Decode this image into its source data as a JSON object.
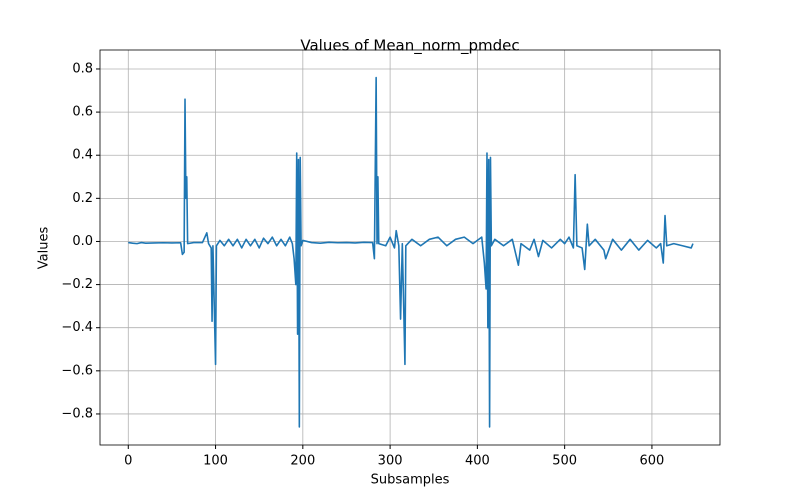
{
  "chart_data": {
    "type": "line",
    "title": "Values of Mean_norm_pmdec",
    "xlabel": "Subsamples",
    "ylabel": "Values",
    "x": [
      0,
      5,
      10,
      15,
      20,
      30,
      40,
      50,
      60,
      62,
      64,
      65,
      66,
      67,
      68,
      75,
      85,
      90,
      92,
      95,
      96,
      97,
      100,
      101,
      105,
      110,
      115,
      120,
      125,
      130,
      135,
      140,
      145,
      150,
      155,
      160,
      165,
      170,
      175,
      180,
      185,
      188,
      190,
      192,
      193,
      194,
      195,
      196,
      197,
      198,
      200,
      210,
      220,
      230,
      240,
      250,
      260,
      270,
      280,
      282,
      284,
      285,
      286,
      287,
      295,
      300,
      305,
      307,
      310,
      312,
      314,
      317,
      318,
      325,
      335,
      345,
      355,
      365,
      375,
      385,
      395,
      405,
      408,
      410,
      411,
      412,
      413,
      414,
      415,
      416,
      420,
      430,
      440,
      447,
      450,
      460,
      465,
      470,
      475,
      485,
      495,
      500,
      505,
      510,
      512,
      514,
      520,
      523,
      526,
      528,
      535,
      545,
      547,
      555,
      565,
      575,
      585,
      595,
      605,
      610,
      613,
      615,
      617,
      625,
      635,
      645,
      647
    ],
    "series": [
      {
        "name": "Mean_norm_pmdec",
        "color": "#1f77b4",
        "values": [
          -0.005,
          -0.008,
          -0.01,
          -0.005,
          -0.008,
          -0.007,
          -0.006,
          -0.007,
          -0.006,
          -0.06,
          -0.05,
          0.66,
          0.2,
          0.3,
          -0.01,
          -0.005,
          -0.005,
          0.04,
          -0.01,
          -0.03,
          -0.37,
          -0.02,
          -0.57,
          -0.02,
          0.005,
          -0.02,
          0.01,
          -0.02,
          0.01,
          -0.03,
          0.01,
          -0.02,
          0.01,
          -0.03,
          0.015,
          -0.01,
          0.02,
          -0.02,
          0.01,
          -0.02,
          0.02,
          -0.01,
          -0.08,
          -0.2,
          0.41,
          -0.43,
          0.38,
          -0.86,
          0.39,
          -0.02,
          0.005,
          -0.005,
          -0.008,
          -0.004,
          -0.006,
          -0.005,
          -0.007,
          -0.004,
          -0.005,
          -0.08,
          0.76,
          -0.01,
          0.3,
          -0.01,
          -0.02,
          0.02,
          -0.03,
          0.05,
          -0.02,
          -0.36,
          -0.01,
          -0.57,
          -0.02,
          0.01,
          -0.02,
          0.01,
          0.02,
          -0.02,
          0.01,
          0.02,
          -0.01,
          0.02,
          -0.1,
          -0.22,
          0.41,
          -0.4,
          0.38,
          -0.86,
          0.39,
          -0.02,
          0.01,
          -0.02,
          0.01,
          -0.11,
          -0.01,
          -0.04,
          0.01,
          -0.07,
          0.005,
          -0.03,
          0.01,
          -0.01,
          0.02,
          -0.03,
          0.31,
          -0.02,
          -0.03,
          -0.13,
          0.08,
          -0.02,
          0.01,
          -0.04,
          -0.08,
          0.01,
          -0.04,
          0.01,
          -0.04,
          0.005,
          -0.03,
          -0.01,
          -0.1,
          0.12,
          -0.02,
          -0.01,
          -0.02,
          -0.03,
          -0.01
        ]
      }
    ],
    "xlim": [
      -32.4,
      678
    ],
    "xticks": [
      0,
      100,
      200,
      300,
      400,
      500,
      600
    ],
    "ylim": [
      -0.944,
      0.888
    ],
    "yticks": [
      {
        "value": -0.8,
        "label": "−0.8"
      },
      {
        "value": -0.6,
        "label": "−0.6"
      },
      {
        "value": -0.4,
        "label": "−0.4"
      },
      {
        "value": -0.2,
        "label": "−0.2"
      },
      {
        "value": 0,
        "label": "0.0"
      },
      0.2,
      0.4,
      0.6,
      0.8
    ],
    "grid": true
  }
}
